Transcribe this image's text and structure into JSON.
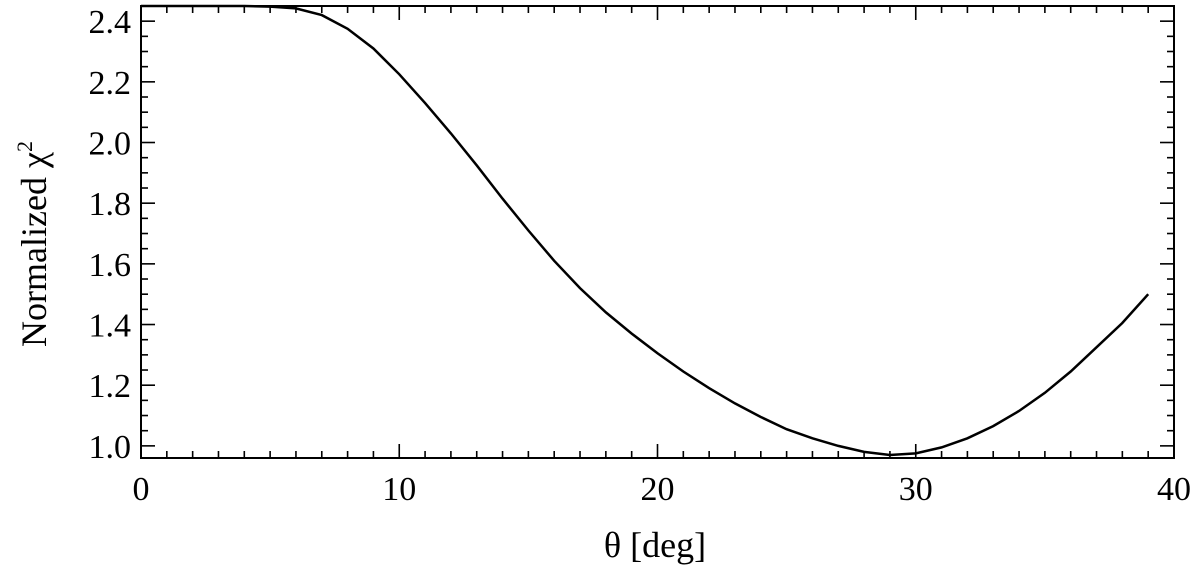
{
  "chart_data": {
    "type": "line",
    "xlabel": "θ [deg]",
    "ylabel": {
      "text": "Normalized χ",
      "superscript": "2"
    },
    "xlim": [
      0,
      40
    ],
    "ylim": [
      0.96,
      2.45
    ],
    "x_ticks": [
      0,
      10,
      20,
      30,
      40
    ],
    "x_tick_labels": [
      "0",
      "10",
      "20",
      "30",
      "40"
    ],
    "y_ticks": [
      1.0,
      1.2,
      1.4,
      1.6,
      1.8,
      2.0,
      2.2,
      2.4
    ],
    "y_tick_labels": [
      "1.0",
      "1.2",
      "1.4",
      "1.6",
      "1.8",
      "2.0",
      "2.2",
      "2.4"
    ],
    "x_minor_step": 1,
    "y_minor_step": 0.05,
    "grid": false,
    "legend": "none",
    "line_color": "#000000",
    "series": [
      {
        "x": [
          0,
          1,
          2,
          3,
          4,
          5,
          6,
          7,
          8,
          9,
          10,
          11,
          12,
          13,
          14,
          15,
          16,
          17,
          18,
          19,
          20,
          21,
          22,
          23,
          24,
          25,
          26,
          27,
          28,
          29,
          30,
          31,
          32,
          33,
          34,
          35,
          36,
          37,
          38,
          39
        ],
        "y": [
          2.45,
          2.45,
          2.45,
          2.45,
          2.45,
          2.448,
          2.442,
          2.42,
          2.375,
          2.31,
          2.225,
          2.13,
          2.03,
          1.925,
          1.815,
          1.71,
          1.61,
          1.52,
          1.44,
          1.37,
          1.305,
          1.245,
          1.19,
          1.14,
          1.095,
          1.055,
          1.025,
          1.0,
          0.98,
          0.97,
          0.975,
          0.995,
          1.025,
          1.065,
          1.115,
          1.175,
          1.245,
          1.325,
          1.405,
          1.5
        ]
      }
    ]
  }
}
